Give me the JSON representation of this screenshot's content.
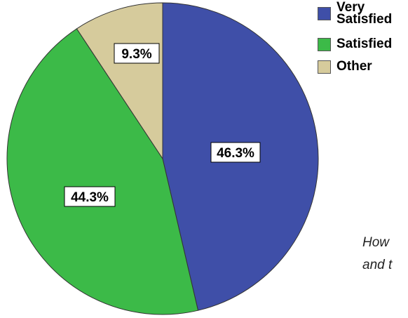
{
  "chart_data": {
    "type": "pie",
    "categories": [
      "Very Satisfied",
      "Satisfied",
      "Other"
    ],
    "values": [
      46.3,
      44.3,
      9.3
    ],
    "data_labels": [
      "46.3%",
      "44.3%",
      "9.3%"
    ],
    "colors": [
      "#3f4fa8",
      "#3cba48",
      "#d6cb9c"
    ],
    "start_angle": "12 o'clock",
    "direction": "clockwise",
    "legend_placement": "top-right"
  },
  "legend": {
    "items": [
      {
        "label": "Very\nSatisfied",
        "color": "#3f4fa8"
      },
      {
        "label": "Satisfied",
        "color": "#3cba48"
      },
      {
        "label": "Other",
        "color": "#d6cb9c"
      }
    ]
  },
  "caption": {
    "line1": "How ",
    "line2": "and t"
  }
}
